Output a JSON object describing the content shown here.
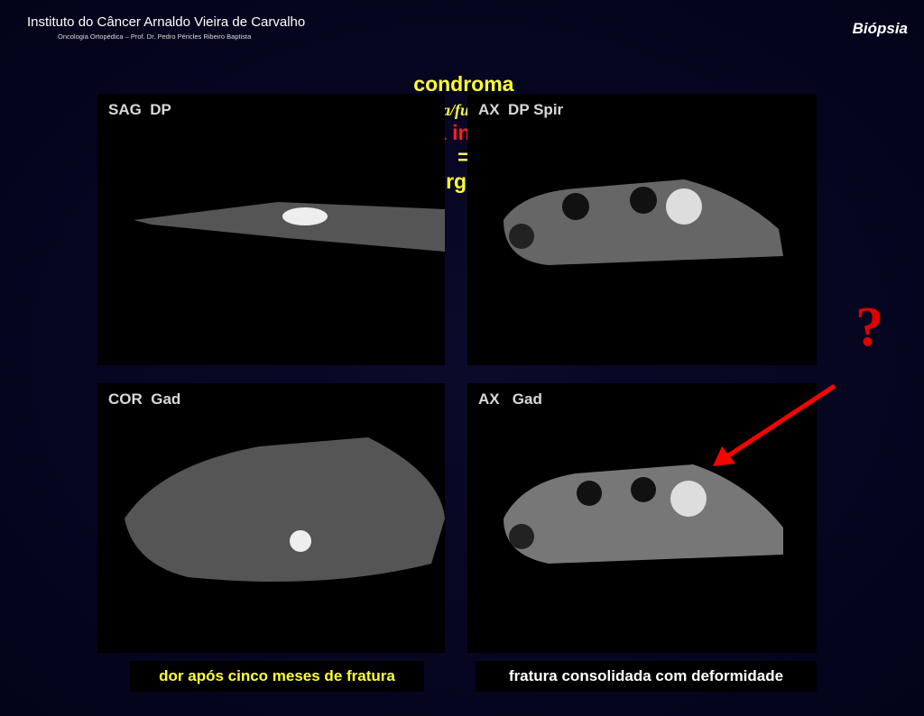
{
  "header": {
    "institution": "Instituto do Câncer Arnaldo Vieira de Carvalho",
    "subtitle": "Oncologia Ortopédica – Prof. Dr. Pedro Péricles Ribeiro Baptista",
    "section": "Biópsia"
  },
  "title": {
    "parts": [
      "condroma",
      "(estética/funcional)",
      ":",
      "não há indicação",
      "=",
      "cirurgia s/n"
    ]
  },
  "panels": [
    {
      "label": "SAG  DP"
    },
    {
      "label": "AX  DP Spir"
    },
    {
      "label": "COR  Gad"
    },
    {
      "label": "AX   Gad"
    }
  ],
  "captions": [
    "dor após cinco meses de fratura",
    "fratura consolidada com deformidade"
  ],
  "annotation": "?"
}
